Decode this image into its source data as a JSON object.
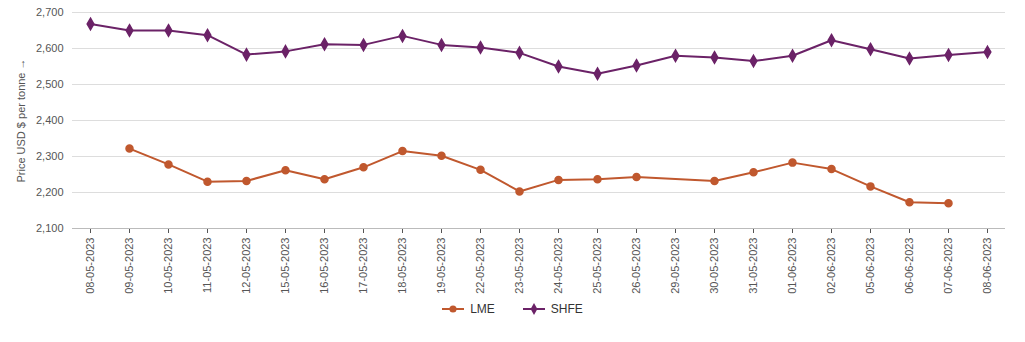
{
  "chart_data": {
    "type": "line",
    "y_label": "Price USD $ per tonne",
    "x": [
      "08-05-2023",
      "09-05-2023",
      "10-05-2023",
      "11-05-2023",
      "12-05-2023",
      "15-05-2023",
      "16-05-2023",
      "17-05-2023",
      "18-05-2023",
      "19-05-2023",
      "22-05-2023",
      "23-05-2023",
      "24-05-2023",
      "25-05-2023",
      "26-05-2023",
      "29-05-2023",
      "30-05-2023",
      "31-05-2023",
      "01-06-2023",
      "02-06-2023",
      "05-06-2023",
      "06-06-2023",
      "07-06-2023",
      "08-06-2023"
    ],
    "series": [
      {
        "name": "LME",
        "color": "#c0582e",
        "marker": "circle",
        "values": [
          null,
          2322,
          2278,
          2230,
          2232,
          2262,
          2237,
          2270,
          2315,
          2302,
          2263,
          2203,
          2235,
          2237,
          2243,
          null,
          2232,
          2256,
          2283,
          2265,
          2217,
          2173,
          2170,
          null
        ]
      },
      {
        "name": "SHFE",
        "color": "#6b2267",
        "marker": "diamond",
        "values": [
          2668,
          2650,
          2650,
          2637,
          2583,
          2592,
          2612,
          2610,
          2635,
          2610,
          2603,
          2588,
          2550,
          2530,
          2553,
          2580,
          2575,
          2565,
          2580,
          2623,
          2598,
          2572,
          2582,
          2590
        ]
      }
    ],
    "ylim": [
      2100,
      2700
    ],
    "yticks": [
      2100,
      2200,
      2300,
      2400,
      2500,
      2600,
      2700
    ],
    "grid": true,
    "legend": "bottom"
  }
}
